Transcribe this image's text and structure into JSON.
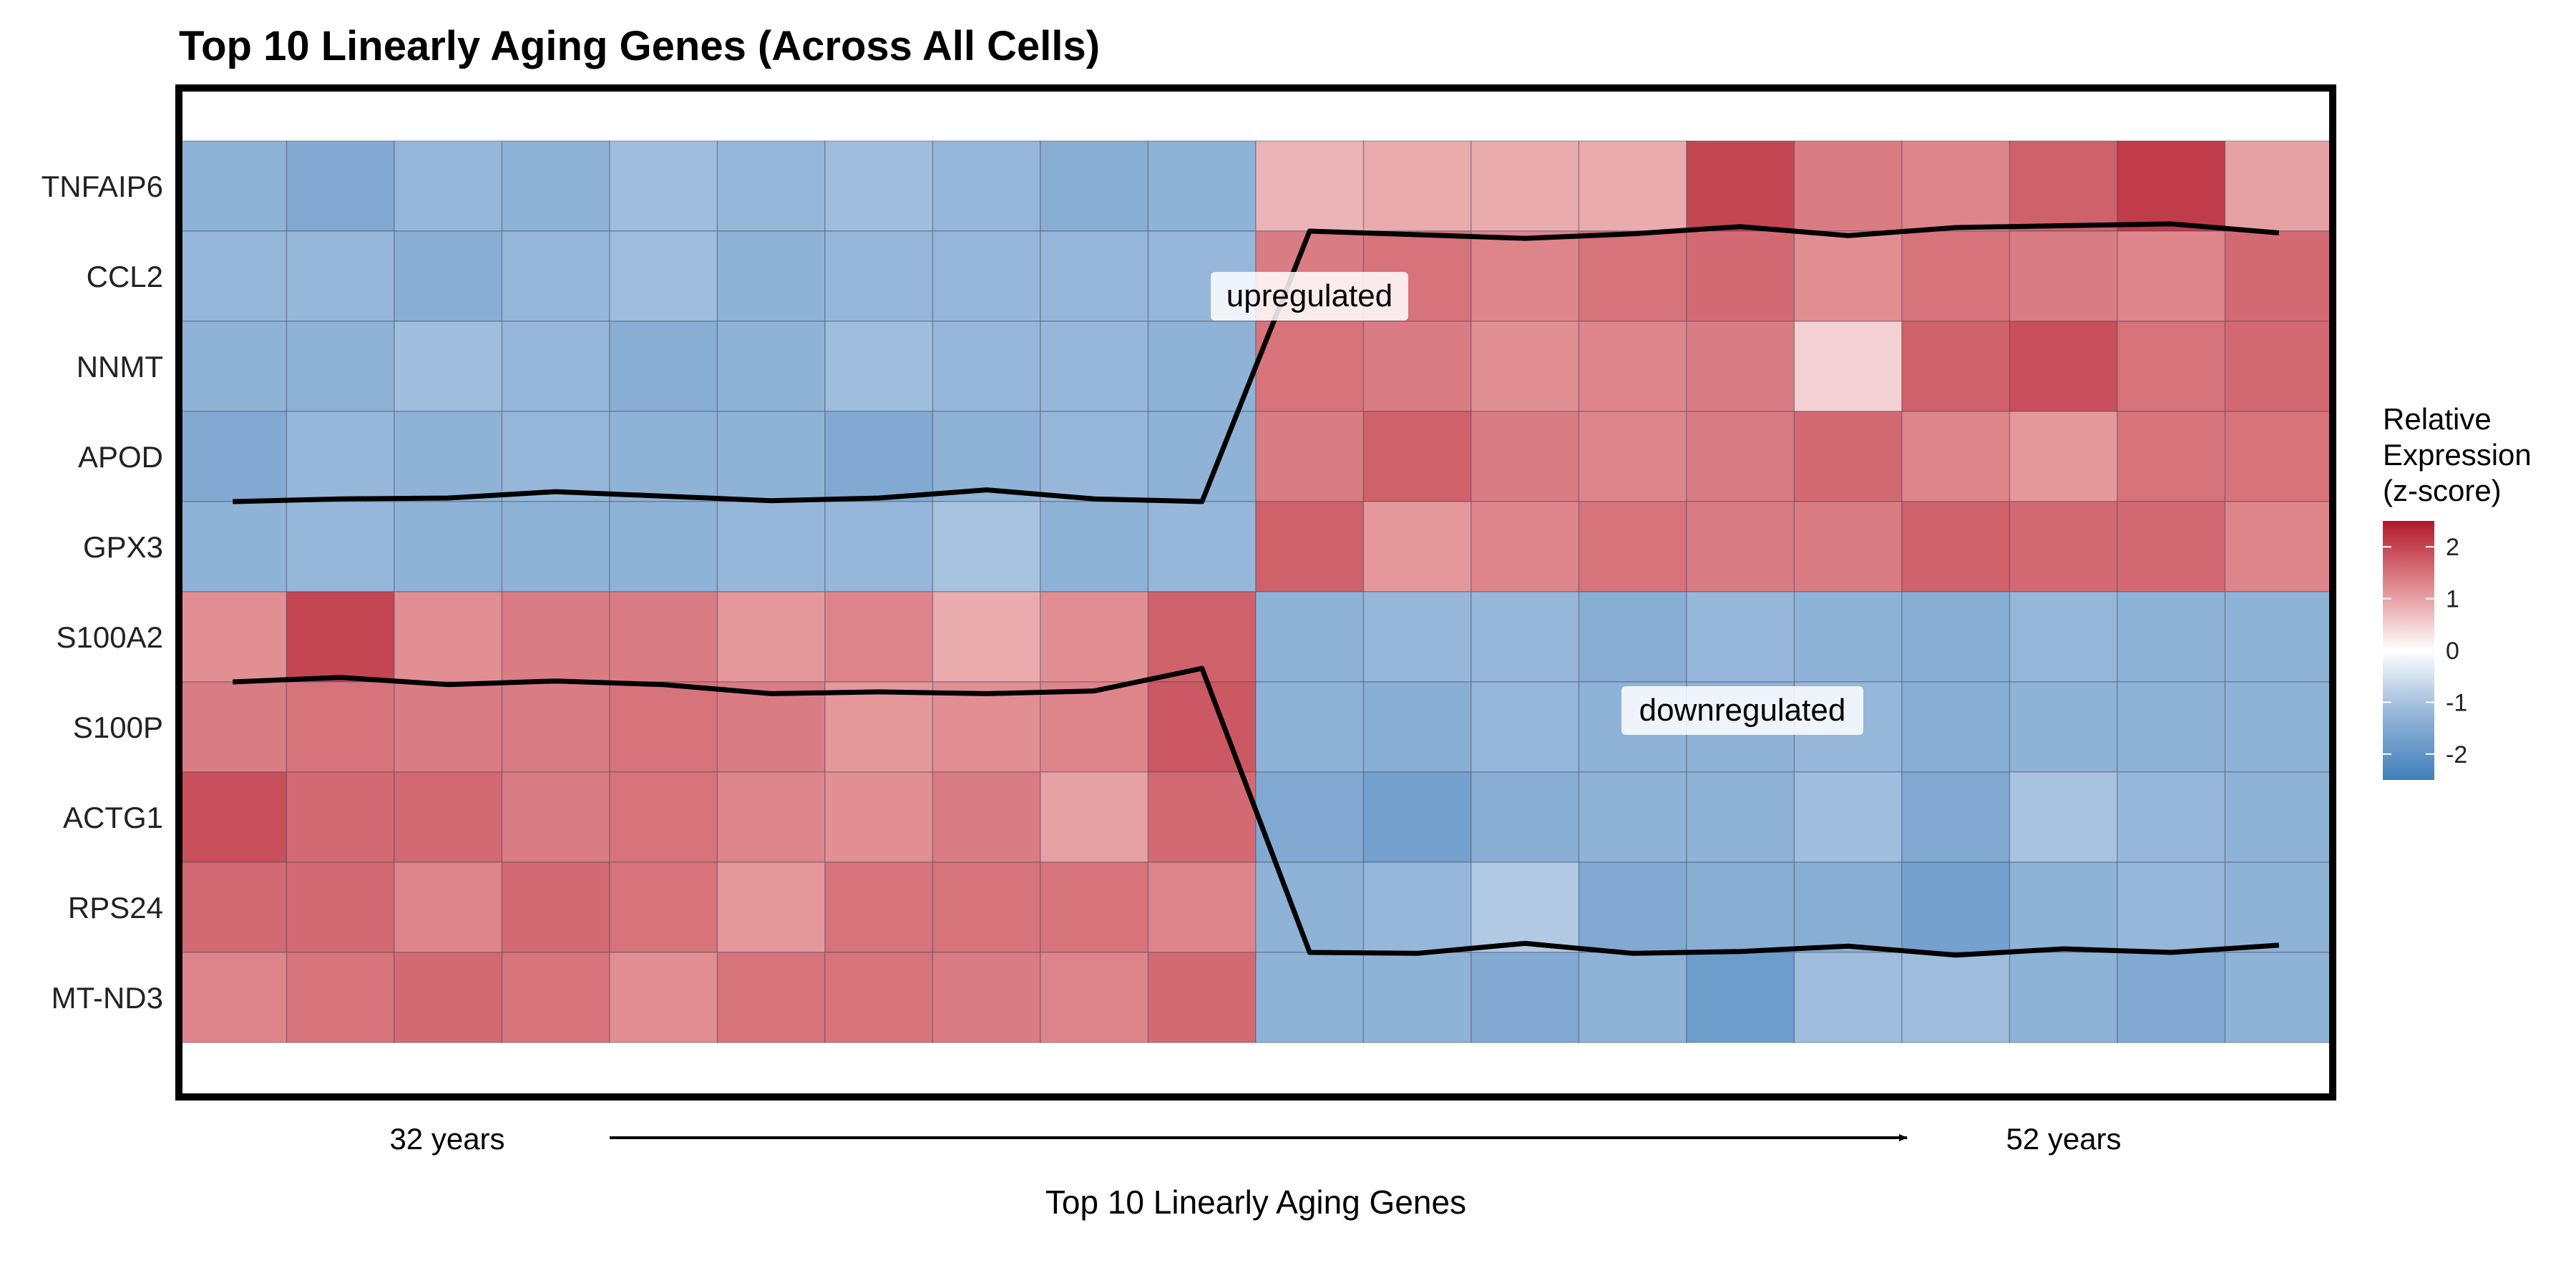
{
  "chart_data": {
    "type": "heatmap",
    "title": "Top 10 Linearly Aging Genes (Across All Cells)",
    "xlabel": "Top 10 Linearly Aging Genes",
    "time_axis": {
      "start_label": "32 years",
      "end_label": "52 years"
    },
    "genes": [
      "TNFAIP6",
      "CCL2",
      "NNMT",
      "APOD",
      "GPX3",
      "S100A2",
      "S100P",
      "ACTG1",
      "RPS24",
      "MT-ND3"
    ],
    "n_columns": 20,
    "values": [
      [
        -1.3,
        -1.5,
        -1.2,
        -1.3,
        -1.1,
        -1.2,
        -1.1,
        -1.2,
        -1.4,
        -1.3,
        0.8,
        0.9,
        0.9,
        0.9,
        2.0,
        1.4,
        1.3,
        1.7,
        2.1,
        1.0
      ],
      [
        -1.2,
        -1.2,
        -1.4,
        -1.2,
        -1.1,
        -1.3,
        -1.2,
        -1.2,
        -1.2,
        -1.2,
        1.4,
        1.5,
        1.3,
        1.5,
        1.6,
        1.2,
        1.5,
        1.4,
        1.3,
        1.6
      ],
      [
        -1.3,
        -1.3,
        -1.1,
        -1.2,
        -1.4,
        -1.3,
        -1.1,
        -1.2,
        -1.2,
        -1.3,
        1.5,
        1.4,
        1.2,
        1.3,
        1.4,
        0.5,
        1.7,
        1.9,
        1.5,
        1.6
      ],
      [
        -1.5,
        -1.2,
        -1.3,
        -1.2,
        -1.3,
        -1.3,
        -1.5,
        -1.3,
        -1.2,
        -1.3,
        1.4,
        1.7,
        1.4,
        1.3,
        1.4,
        1.6,
        1.3,
        1.1,
        1.5,
        1.5
      ],
      [
        -1.3,
        -1.2,
        -1.3,
        -1.3,
        -1.3,
        -1.2,
        -1.2,
        -1.0,
        -1.3,
        -1.2,
        1.7,
        1.1,
        1.3,
        1.5,
        1.4,
        1.4,
        1.7,
        1.6,
        1.6,
        1.3
      ],
      [
        1.2,
        2.0,
        1.2,
        1.4,
        1.4,
        1.1,
        1.3,
        0.9,
        1.2,
        1.7,
        -1.3,
        -1.2,
        -1.2,
        -1.4,
        -1.2,
        -1.3,
        -1.4,
        -1.2,
        -1.3,
        -1.3
      ],
      [
        1.4,
        1.5,
        1.4,
        1.4,
        1.5,
        1.4,
        1.1,
        1.2,
        1.3,
        1.8,
        -1.3,
        -1.4,
        -1.2,
        -1.3,
        -1.3,
        -1.2,
        -1.4,
        -1.3,
        -1.3,
        -1.3
      ],
      [
        1.9,
        1.6,
        1.6,
        1.4,
        1.5,
        1.3,
        1.2,
        1.4,
        1.0,
        1.6,
        -1.5,
        -1.7,
        -1.4,
        -1.3,
        -1.3,
        -1.1,
        -1.5,
        -1.0,
        -1.2,
        -1.3
      ],
      [
        1.6,
        1.6,
        1.3,
        1.6,
        1.5,
        1.1,
        1.5,
        1.5,
        1.5,
        1.3,
        -1.3,
        -1.2,
        -0.9,
        -1.5,
        -1.4,
        -1.4,
        -1.7,
        -1.3,
        -1.2,
        -1.3
      ],
      [
        1.3,
        1.5,
        1.6,
        1.5,
        1.2,
        1.5,
        1.5,
        1.4,
        1.3,
        1.6,
        -1.3,
        -1.3,
        -1.5,
        -1.3,
        -1.8,
        -1.1,
        -1.1,
        -1.3,
        -1.5,
        -1.3
      ]
    ],
    "series": [
      {
        "name": "upregulated",
        "values": [
          1.0,
          1.03,
          1.04,
          1.11,
          1.06,
          1.01,
          1.04,
          1.13,
          1.03,
          1.0,
          4.0,
          3.96,
          3.92,
          3.97,
          4.05,
          3.95,
          4.04,
          4.06,
          4.08,
          3.98
        ]
      },
      {
        "name": "downregulated",
        "values": [
          4.0,
          4.05,
          3.97,
          4.01,
          3.97,
          3.87,
          3.89,
          3.87,
          3.9,
          4.15,
          1.0,
          0.99,
          1.1,
          0.99,
          1.01,
          1.07,
          0.97,
          1.04,
          1.0,
          1.08
        ]
      }
    ],
    "annotations": [
      "upregulated",
      "downregulated"
    ],
    "colorbar": {
      "title": [
        "Relative",
        "Expression",
        "(z-score)"
      ],
      "ticks": [
        "2",
        "1",
        "0",
        "-1",
        "-2"
      ],
      "tick_values": [
        2,
        1,
        0,
        -1,
        -2
      ],
      "range": [
        -2.5,
        2.5
      ],
      "colors": {
        "low": "#3f7fba",
        "mid": "#ffffff",
        "high": "#b2182b"
      }
    }
  }
}
